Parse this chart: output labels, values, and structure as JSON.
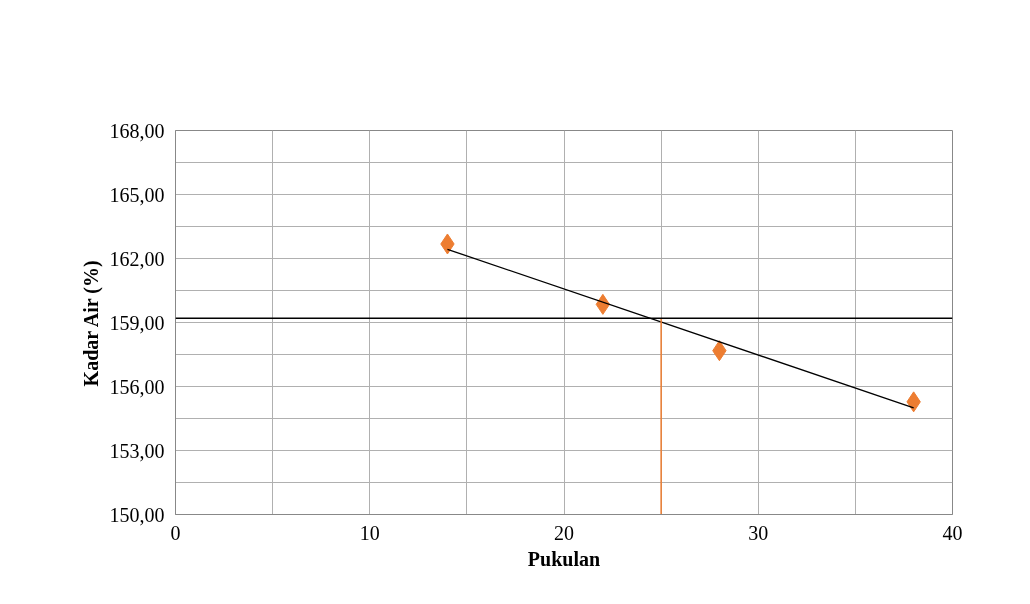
{
  "chart_data": {
    "type": "scatter",
    "xlabel": "Pukulan",
    "ylabel": "Kadar Air (%)",
    "marker": "diamond",
    "grid": true,
    "xlim": [
      0,
      40
    ],
    "ylim": [
      150,
      168
    ],
    "xticks": [
      0,
      {
        "value": 5,
        "label": null
      },
      10,
      {
        "value": 15,
        "label": null
      },
      20,
      {
        "value": 25,
        "label": null
      },
      30,
      {
        "value": 35,
        "label": null
      },
      40
    ],
    "yticks": [
      {
        "value": 150,
        "label": "150,00"
      },
      {
        "value": 151.5,
        "label": null
      },
      {
        "value": 153,
        "label": "153,00"
      },
      {
        "value": 154.5,
        "label": null
      },
      {
        "value": 156,
        "label": "156,00"
      },
      {
        "value": 157.5,
        "label": null
      },
      {
        "value": 159,
        "label": "159,00"
      },
      {
        "value": 160.5,
        "label": null
      },
      {
        "value": 162,
        "label": "162,00"
      },
      {
        "value": 163.5,
        "label": null
      },
      {
        "value": 165,
        "label": "165,00"
      },
      {
        "value": 166.5,
        "label": null
      },
      {
        "value": 168,
        "label": "168,00"
      }
    ],
    "series": [
      {
        "color": "#ed7d31",
        "x": [
          14,
          22,
          28,
          38
        ],
        "values": [
          162.68,
          159.85,
          157.68,
          155.28
        ]
      },
      {
        "type": "line",
        "color": "#000000",
        "marker": "none",
        "x": [
          14,
          38
        ],
        "values": [
          162.43,
          155.0
        ]
      }
    ],
    "ref_lines": [
      {
        "axis": "y",
        "value": 159.2,
        "color": "#000000"
      },
      {
        "axis": "x",
        "value": 25,
        "color": "#ed7d31"
      }
    ]
  }
}
